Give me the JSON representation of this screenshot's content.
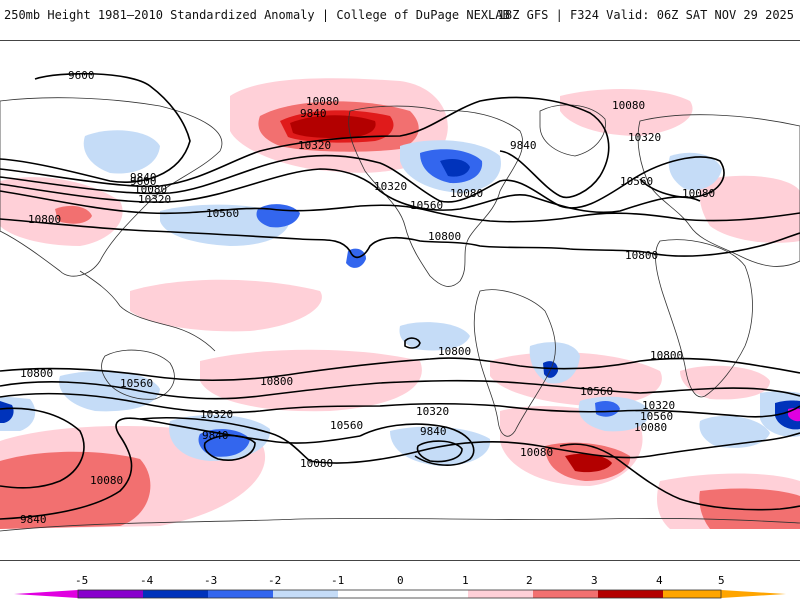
{
  "header": {
    "title": "250mb Height 1981–2010 Standardized Anomaly | College of DuPage NEXLAB",
    "run_info": "18Z GFS | F324 Valid: 06Z SAT NOV 29 2025"
  },
  "colors": {
    "neg5": "#e000e0",
    "neg4": "#8800cc",
    "neg3": "#0033bb",
    "neg2": "#3366ee",
    "neg1": "#c5dcf7",
    "zero": "#ffffff",
    "pos1": "#ffd0d8",
    "pos2": "#f27070",
    "pos3": "#e01b1b",
    "pos4": "#b30000",
    "pos5": "#ffa500",
    "contour": "#000000"
  },
  "contours": {
    "labels": [
      "9600",
      "9840",
      "10080",
      "10320",
      "10560",
      "10800",
      "9840",
      "10080",
      "10320",
      "9600",
      "10320",
      "10080",
      "10560",
      "10800",
      "9840",
      "10080",
      "10320",
      "10560",
      "10800",
      "10080",
      "10800",
      "10560",
      "10800",
      "10320",
      "10800",
      "10560",
      "10560",
      "10080",
      "10320",
      "9840",
      "10080",
      "9840",
      "9840",
      "10800",
      "10560",
      "10080",
      "10320",
      "10080"
    ]
  },
  "colorbar": {
    "ticks": [
      "-5",
      "-4",
      "-3",
      "-2",
      "-1",
      "0",
      "1",
      "2",
      "3",
      "4",
      "5"
    ]
  }
}
